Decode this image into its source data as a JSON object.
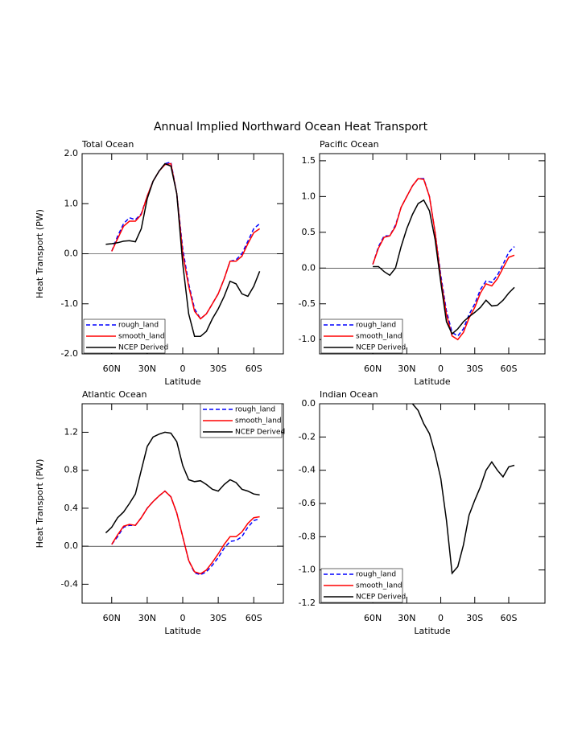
{
  "title": "Annual Implied Northward Ocean Heat Transport",
  "chart_data": [
    {
      "type": "line",
      "title": "Total Ocean",
      "x_label": "Latitude",
      "y_label": "Heat Transport (PW)",
      "x": [
        65,
        60,
        55,
        50,
        45,
        40,
        35,
        30,
        25,
        20,
        15,
        10,
        5,
        0,
        -5,
        -10,
        -15,
        -20,
        -25,
        -30,
        -35,
        -40,
        -45,
        -50,
        -55,
        -60,
        -65
      ],
      "xlim": [
        85,
        -85
      ],
      "xticks": [
        {
          "value": 60,
          "label": "60N"
        },
        {
          "value": 30,
          "label": "30N"
        },
        0,
        {
          "value": -30,
          "label": "30S"
        },
        {
          "value": -60,
          "label": "60S"
        }
      ],
      "ylim": [
        -2,
        2
      ],
      "yticks": [
        {
          "value": -2,
          "label": "-2.0"
        },
        {
          "value": -1,
          "label": "-1.0"
        },
        {
          "value": 0,
          "label": "0.0"
        },
        {
          "value": 1,
          "label": "1.0"
        },
        {
          "value": 2,
          "label": "2.0"
        }
      ],
      "legend": "lower left",
      "series": [
        {
          "name": "rough_land",
          "color": "#0000ff",
          "style": "dashed",
          "values": [
            null,
            0.05,
            0.35,
            0.6,
            0.72,
            0.68,
            0.8,
            1.15,
            1.45,
            1.65,
            1.8,
            1.83,
            1.2,
            0.1,
            -0.6,
            -1.1,
            -1.3,
            -1.2,
            -1.0,
            -0.8,
            -0.5,
            -0.15,
            -0.12,
            0.0,
            0.25,
            0.5,
            0.6
          ]
        },
        {
          "name": "smooth_land",
          "color": "#ff0000",
          "style": "solid",
          "values": [
            null,
            0.05,
            0.3,
            0.55,
            0.65,
            0.65,
            0.78,
            1.15,
            1.45,
            1.65,
            1.78,
            1.8,
            1.2,
            0.0,
            -0.65,
            -1.15,
            -1.3,
            -1.2,
            -1.0,
            -0.8,
            -0.5,
            -0.15,
            -0.15,
            -0.05,
            0.2,
            0.42,
            0.5
          ]
        },
        {
          "name": "NCEP Derived",
          "color": "#000000",
          "style": "solid",
          "values": [
            0.19,
            0.2,
            0.22,
            0.25,
            0.26,
            0.24,
            0.5,
            1.1,
            1.45,
            1.65,
            1.8,
            1.75,
            1.2,
            -0.2,
            -1.2,
            -1.65,
            -1.65,
            -1.55,
            -1.3,
            -1.1,
            -0.85,
            -0.55,
            -0.6,
            -0.8,
            -0.85,
            -0.65,
            -0.35
          ]
        }
      ]
    },
    {
      "type": "line",
      "title": "Pacific Ocean",
      "x_label": "Latitude",
      "x": [
        65,
        60,
        55,
        50,
        45,
        40,
        35,
        30,
        25,
        20,
        15,
        10,
        5,
        0,
        -5,
        -10,
        -15,
        -20,
        -25,
        -30,
        -35,
        -40,
        -45,
        -50,
        -55,
        -60,
        -65
      ],
      "xlim": [
        107,
        -92
      ],
      "xticks": [
        {
          "value": 60,
          "label": "60N"
        },
        {
          "value": 30,
          "label": "30N"
        },
        0,
        {
          "value": -30,
          "label": "30S"
        },
        {
          "value": -60,
          "label": "60S"
        }
      ],
      "ylim": [
        -1.2,
        1.6
      ],
      "yticks": [
        {
          "value": -1,
          "label": "-1.0"
        },
        {
          "value": -0.5,
          "label": "-0.5"
        },
        {
          "value": 0,
          "label": "0.0"
        },
        0.5,
        {
          "value": 1,
          "label": "1.0"
        },
        1.5
      ],
      "legend": "lower left",
      "series": [
        {
          "name": "rough_land",
          "color": "#0000ff",
          "style": "dashed",
          "values": [
            null,
            0.05,
            0.3,
            0.45,
            0.45,
            0.6,
            0.85,
            1.0,
            1.15,
            1.25,
            1.25,
            1.0,
            0.5,
            -0.1,
            -0.6,
            -0.9,
            -0.95,
            -0.85,
            -0.65,
            -0.5,
            -0.3,
            -0.18,
            -0.2,
            -0.1,
            0.05,
            0.22,
            0.3
          ]
        },
        {
          "name": "smooth_land",
          "color": "#ff0000",
          "style": "solid",
          "values": [
            null,
            0.05,
            0.28,
            0.43,
            0.45,
            0.58,
            0.85,
            1.0,
            1.15,
            1.25,
            1.24,
            1.0,
            0.5,
            -0.15,
            -0.65,
            -0.95,
            -1.0,
            -0.9,
            -0.7,
            -0.55,
            -0.35,
            -0.22,
            -0.25,
            -0.15,
            0.0,
            0.15,
            0.18
          ]
        },
        {
          "name": "NCEP Derived",
          "color": "#000000",
          "style": "solid",
          "values": [
            null,
            0.02,
            0.02,
            -0.05,
            -0.1,
            0.0,
            0.3,
            0.55,
            0.75,
            0.9,
            0.95,
            0.8,
            0.4,
            -0.2,
            -0.75,
            -0.92,
            -0.85,
            -0.75,
            -0.68,
            -0.62,
            -0.55,
            -0.45,
            -0.53,
            -0.52,
            -0.45,
            -0.35,
            -0.27
          ]
        }
      ]
    },
    {
      "type": "line",
      "title": "Atlantic Ocean",
      "x_label": "Latitude",
      "y_label": "Heat Transport (PW)",
      "x": [
        65,
        60,
        55,
        50,
        45,
        40,
        35,
        30,
        25,
        20,
        15,
        10,
        5,
        0,
        -5,
        -10,
        -15,
        -20,
        -25,
        -30,
        -35,
        -40,
        -45,
        -50,
        -55,
        -60,
        -65
      ],
      "xlim": [
        85,
        -85
      ],
      "xticks": [
        {
          "value": 60,
          "label": "60N"
        },
        {
          "value": 30,
          "label": "30N"
        },
        0,
        {
          "value": -30,
          "label": "30S"
        },
        {
          "value": -60,
          "label": "60S"
        }
      ],
      "ylim": [
        -0.6,
        1.5
      ],
      "yticks": [
        -0.4,
        {
          "value": 0,
          "label": "0.0"
        },
        0.4,
        0.8,
        1.2
      ],
      "legend": "upper right",
      "series": [
        {
          "name": "rough_land",
          "color": "#0000ff",
          "style": "dashed",
          "values": [
            null,
            0.02,
            0.1,
            0.2,
            0.22,
            0.22,
            0.3,
            0.4,
            0.47,
            0.53,
            0.58,
            0.52,
            0.35,
            0.1,
            -0.15,
            -0.28,
            -0.3,
            -0.27,
            -0.2,
            -0.12,
            -0.02,
            0.05,
            0.06,
            0.1,
            0.2,
            0.27,
            0.29
          ]
        },
        {
          "name": "smooth_land",
          "color": "#ff0000",
          "style": "solid",
          "values": [
            null,
            0.02,
            0.12,
            0.21,
            0.23,
            0.22,
            0.3,
            0.4,
            0.47,
            0.53,
            0.58,
            0.52,
            0.35,
            0.1,
            -0.15,
            -0.27,
            -0.29,
            -0.25,
            -0.17,
            -0.08,
            0.02,
            0.1,
            0.1,
            0.15,
            0.24,
            0.3,
            0.31
          ]
        },
        {
          "name": "NCEP Derived",
          "color": "#000000",
          "style": "solid",
          "values": [
            0.14,
            0.2,
            0.3,
            0.36,
            0.45,
            0.55,
            0.8,
            1.05,
            1.15,
            1.18,
            1.2,
            1.19,
            1.1,
            0.85,
            0.7,
            0.68,
            0.69,
            0.65,
            0.6,
            0.58,
            0.65,
            0.7,
            0.67,
            0.6,
            0.58,
            0.55,
            0.54
          ]
        }
      ]
    },
    {
      "type": "line",
      "title": "Indian Ocean",
      "x_label": "Latitude",
      "x": [
        65,
        60,
        55,
        50,
        45,
        40,
        35,
        30,
        25,
        20,
        15,
        10,
        5,
        0,
        -5,
        -10,
        -15,
        -20,
        -25,
        -30,
        -35,
        -40,
        -45,
        -50,
        -55,
        -60,
        -65
      ],
      "xlim": [
        107,
        -92
      ],
      "xticks": [
        {
          "value": 60,
          "label": "60N"
        },
        {
          "value": 30,
          "label": "30N"
        },
        0,
        {
          "value": -30,
          "label": "30S"
        },
        {
          "value": -60,
          "label": "60S"
        }
      ],
      "ylim": [
        -1.2,
        0
      ],
      "yticks": [
        -1.2,
        {
          "value": -1,
          "label": "-1.0"
        },
        -0.8,
        -0.6,
        -0.4,
        -0.2,
        {
          "value": 0,
          "label": "0.0"
        }
      ],
      "legend": "lower left",
      "series": [
        {
          "name": "rough_land",
          "color": "#0000ff",
          "style": "dashed",
          "values": [
            null,
            null,
            null,
            null,
            null,
            null,
            null,
            null,
            null,
            null,
            null,
            null,
            null,
            null,
            null,
            null,
            null,
            null,
            null,
            null,
            null,
            null,
            null,
            null,
            null,
            null,
            null
          ]
        },
        {
          "name": "smooth_land",
          "color": "#ff0000",
          "style": "solid",
          "values": [
            null,
            null,
            null,
            null,
            null,
            null,
            null,
            null,
            null,
            null,
            null,
            null,
            null,
            null,
            null,
            null,
            null,
            null,
            null,
            null,
            null,
            null,
            null,
            null,
            null,
            null,
            null
          ]
        },
        {
          "name": "NCEP Derived",
          "color": "#000000",
          "style": "solid",
          "values": [
            null,
            null,
            null,
            null,
            null,
            null,
            null,
            null,
            0.0,
            -0.04,
            -0.12,
            -0.18,
            -0.3,
            -0.45,
            -0.7,
            -1.02,
            -0.98,
            -0.85,
            -0.67,
            -0.58,
            -0.5,
            -0.4,
            -0.35,
            -0.4,
            -0.44,
            -0.38,
            -0.37
          ]
        }
      ]
    }
  ]
}
